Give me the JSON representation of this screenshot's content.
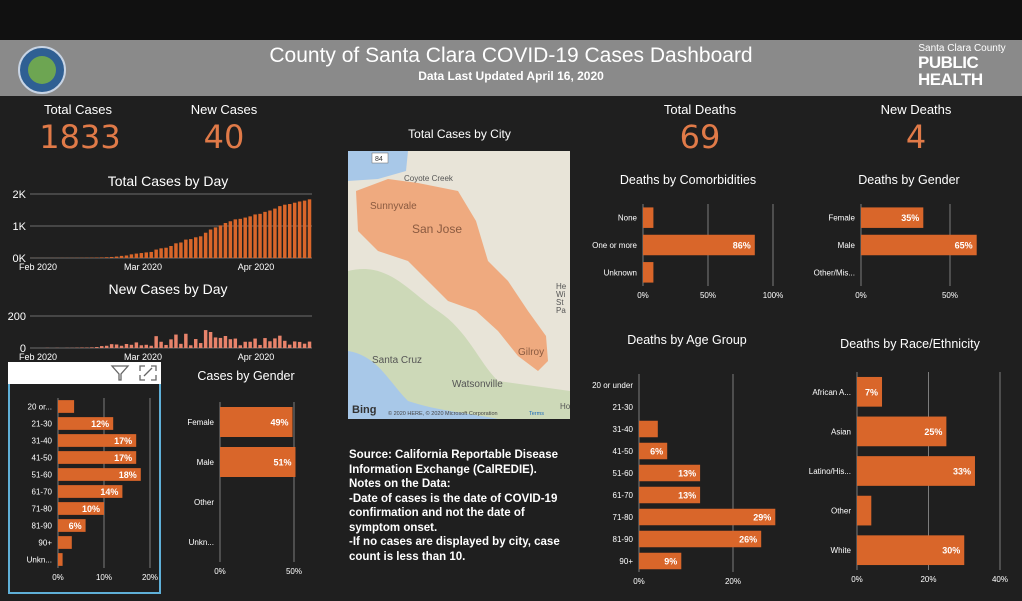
{
  "header": {
    "title": "County of Santa Clara COVID-19 Cases Dashboard",
    "subtitle": "Data Last Updated April 16, 2020",
    "seal_text": "THE COUNTY OF SANTA CLARA",
    "ph_small": "Santa Clara County",
    "ph_line1": "PUBLIC",
    "ph_line2": "HEALTH"
  },
  "kpis": {
    "total_cases_label": "Total Cases",
    "total_cases": "1833",
    "new_cases_label": "New Cases",
    "new_cases": "40",
    "total_deaths_label": "Total Deaths",
    "total_deaths": "69",
    "new_deaths_label": "New Deaths",
    "new_deaths": "4"
  },
  "colors": {
    "accent": "#e07a48",
    "bar": "#d9662a",
    "bar_light": "#e8836b",
    "focus": "#5fb0d8"
  },
  "map": {
    "title": "Total Cases by City",
    "places": [
      "84",
      "Coyote Creek",
      "Sunnyvale",
      "San Jose",
      "Santa Cruz",
      "Watsonville",
      "Gilroy",
      "He",
      "Wi",
      "St",
      "Pa",
      "Ho"
    ],
    "bing": "Bing",
    "copyright": "© 2020 HERE, © 2020 Microsoft Corporation",
    "terms": "Terms"
  },
  "source": {
    "line1": "Source: California Reportable Disease",
    "line2": "Information Exchange (CalREDIE).",
    "line3": "Notes on the Data:",
    "line4": "-Date of cases is the date of COVID-19",
    "line5": "confirmation and not the date of",
    "line6": "symptom onset.",
    "line7": "-If no cases are displayed by city, case",
    "line8": "count is less than 10."
  },
  "visual_toolbar": {
    "filter_icon": "filter-icon",
    "focus_icon": "focus-mode-icon"
  },
  "chart_data": [
    {
      "id": "cases_by_day",
      "type": "bar",
      "title": "Total Cases by Day",
      "y_ticks": [
        "2K",
        "1K",
        "0K"
      ],
      "ylim": [
        0,
        2000
      ],
      "x_ticks": [
        "Feb 2020",
        "Mar 2020",
        "Apr 2020"
      ],
      "values": [
        2,
        2,
        2,
        2,
        3,
        3,
        4,
        4,
        5,
        6,
        7,
        9,
        11,
        14,
        18,
        24,
        32,
        45,
        66,
        79,
        114,
        138,
        155,
        175,
        189,
        263,
        302,
        321,
        375,
        459,
        485,
        574,
        591,
        647,
        678,
        790,
        890,
        956,
        1019,
        1094,
        1148,
        1207,
        1224,
        1263,
        1302,
        1361,
        1380,
        1442,
        1484,
        1544,
        1621,
        1666,
        1687,
        1728,
        1766,
        1793,
        1833
      ],
      "grid": true
    },
    {
      "id": "new_cases_by_day",
      "type": "bar",
      "title": "New Cases by Day",
      "y_ticks": [
        "200",
        "0"
      ],
      "ylim": [
        0,
        200
      ],
      "x_ticks": [
        "Feb 2020",
        "Mar 2020",
        "Apr 2020"
      ],
      "values": [
        0,
        0,
        0,
        1,
        0,
        1,
        0,
        1,
        1,
        2,
        3,
        3,
        4,
        6,
        12,
        14,
        24,
        22,
        14,
        25,
        20,
        35,
        17,
        20,
        14,
        74,
        39,
        19,
        54,
        84,
        26,
        89,
        17,
        56,
        31,
        112,
        100,
        66,
        63,
        75,
        55,
        59,
        17,
        39,
        39,
        59,
        19,
        62,
        42,
        60,
        77,
        45,
        21,
        41,
        38,
        27,
        40
      ],
      "grid": true
    },
    {
      "id": "cases_by_age",
      "type": "bar",
      "orientation": "horizontal",
      "categories": [
        "20 or...",
        "21-30",
        "31-40",
        "41-50",
        "51-60",
        "61-70",
        "71-80",
        "81-90",
        "90+",
        "Unkn..."
      ],
      "values": [
        3.5,
        12,
        17,
        17,
        18,
        14,
        10,
        6,
        3,
        1
      ],
      "data_labels": [
        "",
        "12%",
        "17%",
        "17%",
        "18%",
        "14%",
        "10%",
        "6%",
        "",
        ""
      ],
      "x_ticks": [
        "0%",
        "10%",
        "20%"
      ],
      "xlim": [
        0,
        20
      ],
      "grid": true
    },
    {
      "id": "cases_by_gender",
      "type": "bar",
      "orientation": "horizontal",
      "title": "Cases by Gender",
      "categories": [
        "Female",
        "Male",
        "Other",
        "Unkn..."
      ],
      "values": [
        49,
        51,
        0,
        0
      ],
      "data_labels": [
        "49%",
        "51%",
        "",
        ""
      ],
      "x_ticks": [
        "0%",
        "50%"
      ],
      "xlim": [
        0,
        50
      ],
      "grid": true
    },
    {
      "id": "deaths_by_comorbidities",
      "type": "bar",
      "orientation": "horizontal",
      "title": "Deaths by Comorbidities",
      "categories": [
        "None",
        "One or more",
        "Unknown"
      ],
      "values": [
        8,
        86,
        8
      ],
      "data_labels": [
        "",
        "86%",
        ""
      ],
      "x_ticks": [
        "0%",
        "50%",
        "100%"
      ],
      "xlim": [
        0,
        100
      ],
      "grid": true
    },
    {
      "id": "deaths_by_gender",
      "type": "bar",
      "orientation": "horizontal",
      "title": "Deaths by Gender",
      "categories": [
        "Female",
        "Male",
        "Other/Mis..."
      ],
      "values": [
        35,
        65,
        0
      ],
      "data_labels": [
        "35%",
        "65%",
        ""
      ],
      "x_ticks": [
        "0%",
        "50%"
      ],
      "xlim": [
        0,
        50
      ],
      "grid": true
    },
    {
      "id": "deaths_by_age",
      "type": "bar",
      "orientation": "horizontal",
      "title": "Deaths by Age Group",
      "categories": [
        "20 or under",
        "21-30",
        "31-40",
        "41-50",
        "51-60",
        "61-70",
        "71-80",
        "81-90",
        "90+"
      ],
      "values": [
        0,
        0,
        4,
        6,
        13,
        13,
        29,
        26,
        9
      ],
      "data_labels": [
        "",
        "",
        "",
        "6%",
        "13%",
        "13%",
        "29%",
        "26%",
        "9%"
      ],
      "x_ticks": [
        "0%",
        "20%"
      ],
      "xlim": [
        0,
        20
      ],
      "grid": true
    },
    {
      "id": "deaths_by_race",
      "type": "bar",
      "orientation": "horizontal",
      "title": "Deaths by Race/Ethnicity",
      "categories": [
        "African A...",
        "Asian",
        "Latino/His...",
        "Other",
        "White"
      ],
      "values": [
        7,
        25,
        33,
        4,
        30
      ],
      "data_labels": [
        "7%",
        "25%",
        "33%",
        "",
        "30%"
      ],
      "x_ticks": [
        "0%",
        "20%",
        "40%"
      ],
      "xlim": [
        0,
        40
      ],
      "grid": true
    }
  ]
}
